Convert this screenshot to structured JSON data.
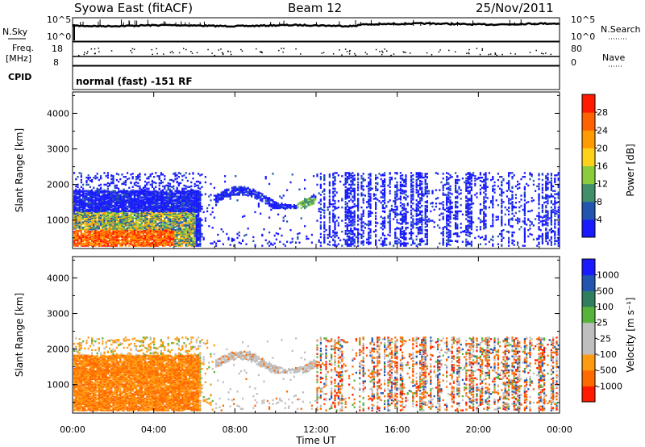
{
  "header": {
    "title": "Syowa East (fitACF)",
    "beam": "Beam 12",
    "date": "25/Nov/2011"
  },
  "mini_panels": {
    "sky_label": "N.Sky",
    "sky_ticks": [
      "10^5",
      "10^0"
    ],
    "search_label": "N.Search",
    "search_ticks": [
      "10^5",
      "10^0"
    ],
    "freq_label_1": "Freq.",
    "freq_label_2": "[MHz]",
    "freq_ticks": [
      "18",
      "8"
    ],
    "nave_label": "Nave",
    "nave_ticks": [
      "80",
      "0"
    ],
    "cpid_label": "CPID",
    "cpid_text": "normal (fast) -151 RF"
  },
  "colors": {
    "power": [
      "#1a1aff",
      "#2255b0",
      "#3f8f6a",
      "#8ccc3c",
      "#ffd21a",
      "#ff9b00",
      "#ff6200",
      "#ff1a00"
    ],
    "velocity": [
      "#ff1a00",
      "#ff6a00",
      "#ff9b10",
      "#bfbfbf",
      "#bfbfbf",
      "#58b33a",
      "#2f7f5f",
      "#2255b0",
      "#1a1aff"
    ]
  },
  "chart_data": [
    {
      "type": "heatmap",
      "title": "Power",
      "xlabel": "",
      "ylabel": "Slant Range [km]",
      "ylim": [
        200,
        4600
      ],
      "yticks": [
        "1000",
        "2000",
        "3000",
        "4000"
      ],
      "colorbar_label": "Power [dB]",
      "colorbar_ticks": [
        "4",
        "8",
        "12",
        "16",
        "20",
        "24",
        "28"
      ],
      "colorbar_range": [
        0,
        32
      ],
      "grid": false
    },
    {
      "type": "heatmap",
      "title": "Velocity",
      "xlabel": "Time UT",
      "ylabel": "Slant Range [km]",
      "ylim": [
        200,
        4600
      ],
      "yticks": [
        "1000",
        "2000",
        "3000",
        "4000"
      ],
      "xticks": [
        "00:00",
        "04:00",
        "08:00",
        "12:00",
        "16:00",
        "20:00",
        "00:00"
      ],
      "xlim_hours": [
        0,
        24
      ],
      "colorbar_label": "Velocity [m s⁻¹]",
      "colorbar_ticks": [
        "-1000",
        "-500",
        "-100",
        "-25",
        "25",
        "100",
        "500",
        "1000"
      ],
      "grid": false
    }
  ]
}
